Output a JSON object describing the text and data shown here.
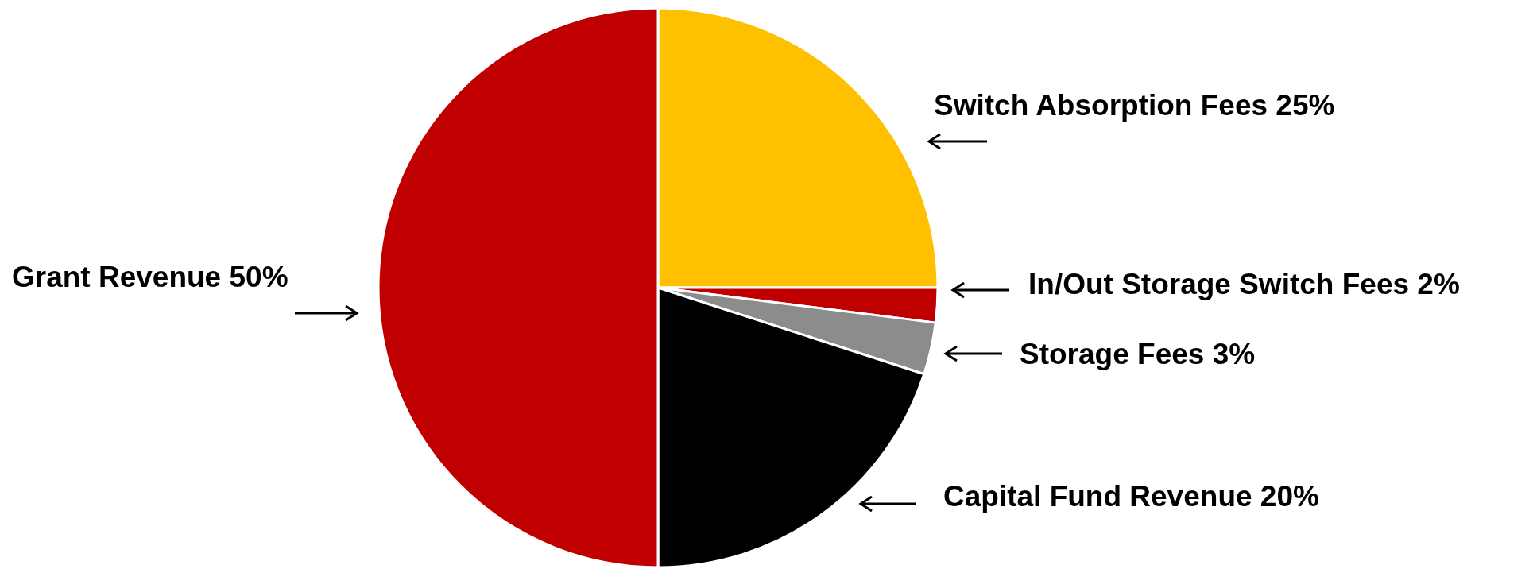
{
  "chart_data": {
    "type": "pie",
    "categories": [
      "Switch Absorption Fees",
      "In/Out Storage Switch Fees",
      "Storage Fees",
      "Capital Fund Revenue",
      "Grant Revenue"
    ],
    "values": [
      25,
      2,
      3,
      20,
      50
    ],
    "colors": [
      "#ffc000",
      "#c00000",
      "#8c8c8c",
      "#000000",
      "#c00000"
    ],
    "value_labels": [
      "25%",
      "2%",
      "3%",
      "20%",
      "50%"
    ],
    "legend": false
  }
}
